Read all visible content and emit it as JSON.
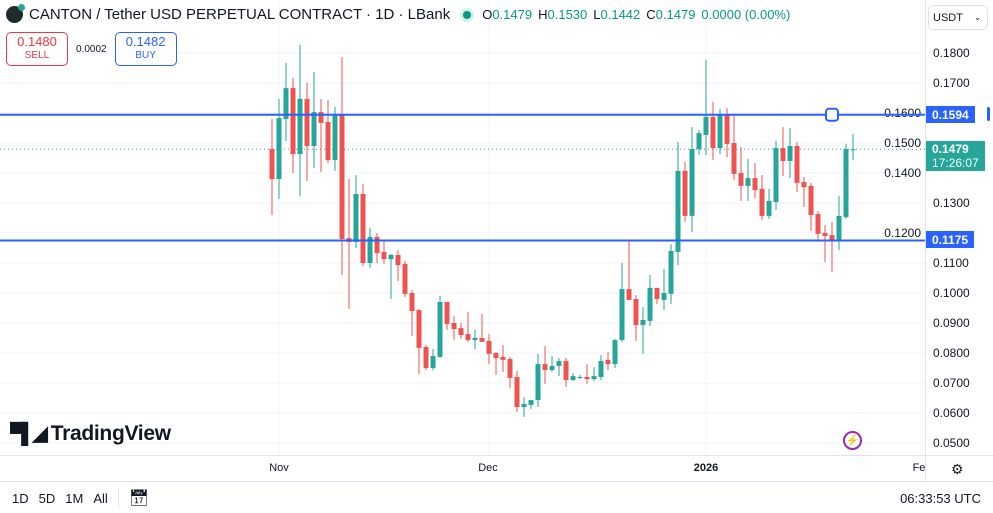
{
  "header": {
    "title": "CANTON / Tether USD PERPETUAL CONTRACT · 1D · LBank",
    "logo_letter": "C",
    "ohlc": {
      "o_label": "O",
      "o": "0.1479",
      "h_label": "H",
      "h": "0.1530",
      "l_label": "L",
      "l": "0.1442",
      "c_label": "C",
      "c": "0.1479",
      "change": "0.0000 (0.00%)"
    }
  },
  "trade": {
    "sell_price": "0.1480",
    "sell_label": "SELL",
    "spread": "0.0002",
    "buy_price": "0.1482",
    "buy_label": "BUY"
  },
  "currency_select": "USDT",
  "brand": "TradingView",
  "price_badges": {
    "upper_line": "0.1594",
    "lower_line": "0.1175",
    "last_price": "0.1479",
    "countdown": "17:26:07"
  },
  "time_axis": [
    "Nov",
    "Dec",
    "2026",
    "Fe"
  ],
  "bottom_bar": {
    "ranges": [
      "1D",
      "5D",
      "1M",
      "All"
    ],
    "clock": "06:33:53 UTC"
  },
  "colors": {
    "up": "#26a69a",
    "down": "#ef5350",
    "line": "#2962ff"
  },
  "chart_data": {
    "type": "candlestick",
    "interval": "1D",
    "y_ticks": [
      "0.1800",
      "0.1700",
      "0.1600",
      "0.1500",
      "0.1400",
      "0.1300",
      "0.1200",
      "0.1100",
      "0.1000",
      "0.0900",
      "0.0800",
      "0.0700",
      "0.0600",
      "0.0500"
    ],
    "ylim": [
      0.05,
      0.18
    ],
    "horizontal_lines": [
      0.1594,
      0.1175
    ],
    "last_price": 0.1479,
    "x_labels": [
      {
        "label": "Nov",
        "index": 1
      },
      {
        "label": "Dec",
        "index": 31
      },
      {
        "label": "2026",
        "index": 62
      }
    ],
    "ohlc": [
      [
        0.148,
        0.158,
        0.126,
        0.138
      ],
      [
        0.138,
        0.1647,
        0.1313,
        0.1583
      ],
      [
        0.158,
        0.1767,
        0.1507,
        0.1683
      ],
      [
        0.1683,
        0.1717,
        0.14,
        0.1463
      ],
      [
        0.1463,
        0.1827,
        0.1323,
        0.1647
      ],
      [
        0.1647,
        0.17,
        0.1373,
        0.149
      ],
      [
        0.149,
        0.1737,
        0.1417,
        0.1603
      ],
      [
        0.1603,
        0.1647,
        0.1403,
        0.1567
      ],
      [
        0.157,
        0.1643,
        0.1433,
        0.1443
      ],
      [
        0.1443,
        0.162,
        0.1407,
        0.1593
      ],
      [
        0.1593,
        0.1787,
        0.106,
        0.118
      ],
      [
        0.1183,
        0.138,
        0.0947,
        0.117
      ],
      [
        0.117,
        0.1393,
        0.115,
        0.133
      ],
      [
        0.133,
        0.1363,
        0.109,
        0.11
      ],
      [
        0.11,
        0.1217,
        0.1083,
        0.1187
      ],
      [
        0.1187,
        0.12,
        0.11,
        0.1133
      ],
      [
        0.1137,
        0.1177,
        0.1097,
        0.1113
      ],
      [
        0.1113,
        0.113,
        0.098,
        0.1127
      ],
      [
        0.1127,
        0.1143,
        0.104,
        0.1093
      ],
      [
        0.1097,
        0.1107,
        0.0987,
        0.0997
      ],
      [
        0.1,
        0.101,
        0.0857,
        0.094
      ],
      [
        0.0943,
        0.0947,
        0.073,
        0.0817
      ],
      [
        0.082,
        0.0827,
        0.0743,
        0.075
      ],
      [
        0.075,
        0.0813,
        0.0743,
        0.079
      ],
      [
        0.0787,
        0.099,
        0.0783,
        0.097
      ],
      [
        0.097,
        0.097,
        0.0877,
        0.0897
      ],
      [
        0.09,
        0.0923,
        0.0843,
        0.088
      ],
      [
        0.0883,
        0.09,
        0.0847,
        0.086
      ],
      [
        0.0863,
        0.0937,
        0.0837,
        0.0843
      ],
      [
        0.0843,
        0.0877,
        0.0813,
        0.085
      ],
      [
        0.085,
        0.093,
        0.0837,
        0.0837
      ],
      [
        0.084,
        0.0863,
        0.0763,
        0.0797
      ],
      [
        0.08,
        0.0803,
        0.0727,
        0.0783
      ],
      [
        0.0787,
        0.0827,
        0.0737,
        0.0777
      ],
      [
        0.078,
        0.0787,
        0.0683,
        0.0717
      ],
      [
        0.072,
        0.074,
        0.0603,
        0.062
      ],
      [
        0.062,
        0.0653,
        0.0587,
        0.063
      ],
      [
        0.0627,
        0.0643,
        0.0613,
        0.0643
      ],
      [
        0.0643,
        0.0797,
        0.062,
        0.0763
      ],
      [
        0.0763,
        0.0823,
        0.0697,
        0.0743
      ],
      [
        0.0743,
        0.079,
        0.0737,
        0.0757
      ],
      [
        0.0757,
        0.0783,
        0.0723,
        0.0773
      ],
      [
        0.0773,
        0.0783,
        0.0687,
        0.071
      ],
      [
        0.071,
        0.0733,
        0.0707,
        0.0723
      ],
      [
        0.0717,
        0.0727,
        0.0713,
        0.072
      ],
      [
        0.072,
        0.0763,
        0.0697,
        0.0713
      ],
      [
        0.0713,
        0.0753,
        0.0707,
        0.0723
      ],
      [
        0.072,
        0.0793,
        0.071,
        0.0773
      ],
      [
        0.0777,
        0.0803,
        0.0743,
        0.0763
      ],
      [
        0.0763,
        0.0847,
        0.075,
        0.0843
      ],
      [
        0.0843,
        0.11,
        0.0837,
        0.1013
      ],
      [
        0.1013,
        0.1173,
        0.0977,
        0.0977
      ],
      [
        0.098,
        0.0993,
        0.084,
        0.0893
      ],
      [
        0.0893,
        0.0953,
        0.0797,
        0.091
      ],
      [
        0.0907,
        0.106,
        0.089,
        0.1017
      ],
      [
        0.1017,
        0.1017,
        0.0963,
        0.098
      ],
      [
        0.0977,
        0.108,
        0.0943,
        0.1
      ],
      [
        0.0997,
        0.1163,
        0.0963,
        0.114
      ],
      [
        0.1137,
        0.1503,
        0.1093,
        0.1407
      ],
      [
        0.1407,
        0.1437,
        0.1237,
        0.1257
      ],
      [
        0.1257,
        0.1553,
        0.1203,
        0.148
      ],
      [
        0.148,
        0.1543,
        0.146,
        0.1533
      ],
      [
        0.1527,
        0.1777,
        0.146,
        0.1587
      ],
      [
        0.1587,
        0.1637,
        0.1443,
        0.1483
      ],
      [
        0.1483,
        0.1613,
        0.1463,
        0.1593
      ],
      [
        0.1593,
        0.1617,
        0.1453,
        0.1497
      ],
      [
        0.15,
        0.1593,
        0.1377,
        0.1397
      ],
      [
        0.14,
        0.1487,
        0.1307,
        0.1357
      ],
      [
        0.1357,
        0.1447,
        0.1307,
        0.1383
      ],
      [
        0.1383,
        0.1433,
        0.1317,
        0.1343
      ],
      [
        0.1347,
        0.1393,
        0.1243,
        0.1257
      ],
      [
        0.1257,
        0.1347,
        0.1247,
        0.1307
      ],
      [
        0.1303,
        0.1507,
        0.1277,
        0.1483
      ],
      [
        0.1483,
        0.1553,
        0.139,
        0.144
      ],
      [
        0.144,
        0.155,
        0.1383,
        0.149
      ],
      [
        0.149,
        0.1503,
        0.1337,
        0.1367
      ],
      [
        0.137,
        0.1387,
        0.1287,
        0.1353
      ],
      [
        0.1357,
        0.1367,
        0.1207,
        0.126
      ],
      [
        0.1263,
        0.1273,
        0.1173,
        0.1197
      ],
      [
        0.12,
        0.1227,
        0.1103,
        0.119
      ],
      [
        0.1193,
        0.1237,
        0.1071,
        0.1177
      ],
      [
        0.1177,
        0.1323,
        0.1143,
        0.1257
      ],
      [
        0.1253,
        0.1497,
        0.1247,
        0.148
      ],
      [
        0.1479,
        0.153,
        0.1442,
        0.1479
      ]
    ]
  }
}
